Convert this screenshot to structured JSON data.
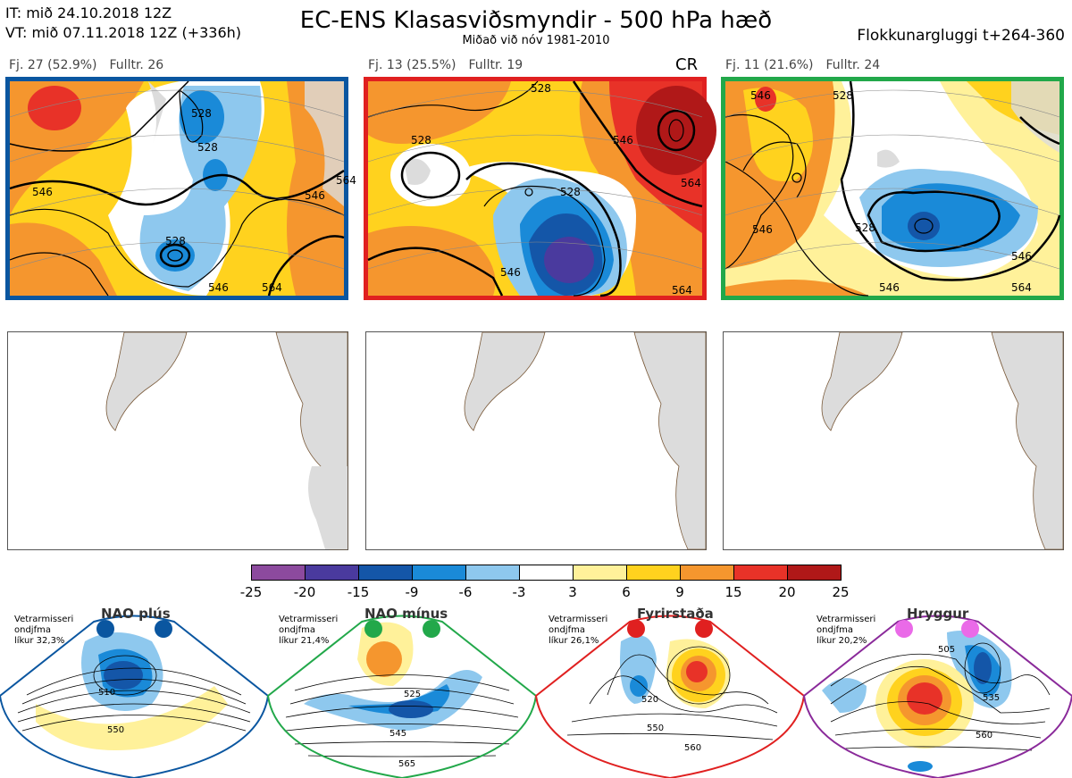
{
  "header": {
    "it_line": "IT: mið 24.10.2018 12Z",
    "vt_line": "VT: mið 07.11.2018 12Z  (+336h)",
    "title": "EC-ENS Klasasviðsmyndir - 500 hPa hæð",
    "subtitle": "Miðað við nóv 1981-2010",
    "window": "Flokkunargluggi t+264-360"
  },
  "clusters": [
    {
      "fj": "Fj. 27 (52.9%)",
      "fulltr": "Fulltr. 26",
      "tag": "",
      "border_color": "#0a56a0",
      "contours": [
        "528",
        "546",
        "528",
        "546",
        "564",
        "528",
        "546",
        "564"
      ]
    },
    {
      "fj": "Fj. 13 (25.5%)",
      "fulltr": "Fulltr. 19",
      "tag": "CR",
      "border_color": "#e02020",
      "contours": [
        "528",
        "528",
        "546",
        "546",
        "564",
        "564",
        "528"
      ]
    },
    {
      "fj": "Fj. 11 (21.6%)",
      "fulltr": "Fulltr. 24",
      "tag": "",
      "border_color": "#22a84a",
      "contours": [
        "546",
        "528",
        "546",
        "546",
        "528",
        "546",
        "564"
      ]
    }
  ],
  "colorbar": {
    "ticks": [
      "-25",
      "-20",
      "-15",
      "-9",
      "-6",
      "-3",
      "3",
      "6",
      "9",
      "15",
      "20",
      "25"
    ],
    "colors": [
      "#8c4a9e",
      "#4a3a9e",
      "#1456a8",
      "#1a8ad8",
      "#8ec8ee",
      "#ffffff",
      "#fff19a",
      "#ffd21e",
      "#f5962e",
      "#e83228",
      "#b01818"
    ]
  },
  "regimes": [
    {
      "name": "NAO plús",
      "note": [
        "Vetrarmisseri",
        "ondjfma",
        "líkur 32,3%"
      ],
      "color": "#0a56a0",
      "labels": [
        "510",
        "550"
      ]
    },
    {
      "name": "NAO mínus",
      "note": [
        "Vetrarmisseri",
        "ondjfma",
        "líkur 21,4%"
      ],
      "color": "#22a84a",
      "labels": [
        "525",
        "545",
        "565"
      ]
    },
    {
      "name": "Fyrirstaða",
      "note": [
        "Vetrarmisseri",
        "ondjfma",
        "líkur 26,1%"
      ],
      "color": "#e02020",
      "labels": [
        "520",
        "550",
        "560"
      ]
    },
    {
      "name": "Hryggur",
      "note": [
        "Vetrarmisseri",
        "ondjfma",
        "líkur 20,2%"
      ],
      "color": "#8a2a9a",
      "labels": [
        "505",
        "535",
        "560"
      ]
    }
  ]
}
